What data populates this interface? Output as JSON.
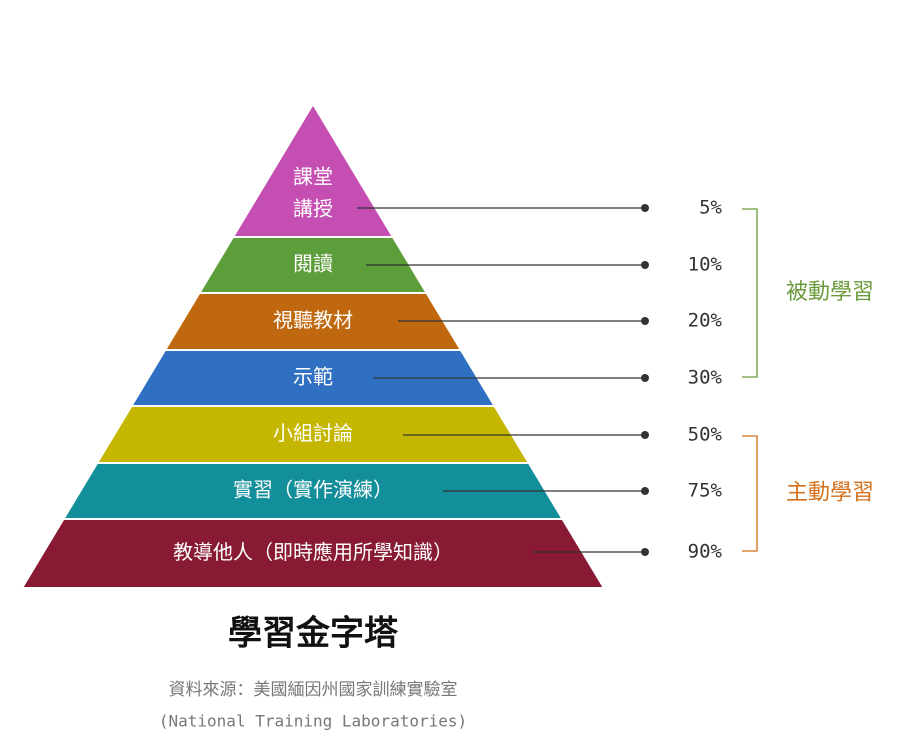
{
  "pyramid": {
    "layers": [
      {
        "label": [
          "課堂",
          "講授"
        ],
        "percent": "5%",
        "color": "#c54eb3"
      },
      {
        "label": [
          "閱讀"
        ],
        "percent": "10%",
        "color": "#5d9d3a"
      },
      {
        "label": [
          "視聽教材"
        ],
        "percent": "20%",
        "color": "#c0680f"
      },
      {
        "label": [
          "示範"
        ],
        "percent": "30%",
        "color": "#2f70c3"
      },
      {
        "label": [
          "小組討論"
        ],
        "percent": "50%",
        "color": "#c5b602"
      },
      {
        "label": [
          "實習（實作演練）"
        ],
        "percent": "75%",
        "color": "#138e9b"
      },
      {
        "label": [
          "教導他人（即時應用所學知識）"
        ],
        "percent": "90%",
        "color": "#891a33"
      }
    ],
    "groups": [
      {
        "label": "被動學習",
        "color": "#6b9a3c",
        "from": 0,
        "to": 3
      },
      {
        "label": "主動學習",
        "color": "#d3711b",
        "from": 4,
        "to": 6
      }
    ]
  },
  "title": "學習金字塔",
  "source": [
    "資料來源：美國緬因州國家訓練實驗室",
    "(National Training Laboratories)"
  ]
}
